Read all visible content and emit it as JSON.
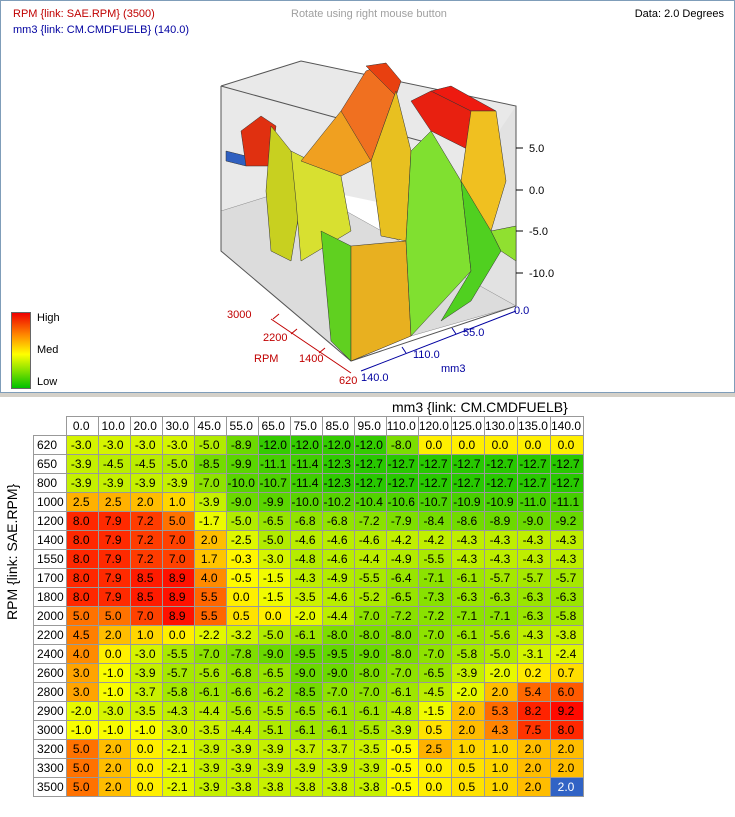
{
  "header": {
    "rpm_line": "RPM {link: SAE.RPM} (3500)",
    "mm3_line": "mm3 {link: CM.CMDFUELB} (140.0)",
    "rotate_hint": "Rotate using right mouse button",
    "data_readout": "Data: 2.0 Degrees"
  },
  "legend": {
    "high": "High",
    "med": "Med",
    "low": "Low"
  },
  "axes3d": {
    "z_ticks": [
      "5.0",
      "0.0",
      "-5.0",
      "-10.0"
    ],
    "rpm_label": "RPM",
    "rpm_ticks": [
      "3000",
      "2200",
      "1400",
      "620"
    ],
    "mm3_label": "mm3",
    "mm3_ticks": [
      "0.0",
      "55.0",
      "110.0",
      "140.0"
    ]
  },
  "grid": {
    "col_axis_title": "mm3 {link: CM.CMDFUELB}",
    "row_axis_title": "RPM {link: SAE.RPM}",
    "columns": [
      "0.0",
      "10.0",
      "20.0",
      "30.0",
      "45.0",
      "55.0",
      "65.0",
      "75.0",
      "85.0",
      "95.0",
      "110.0",
      "120.0",
      "125.0",
      "130.0",
      "135.0",
      "140.0"
    ],
    "rows": [
      "620",
      "650",
      "800",
      "1000",
      "1200",
      "1400",
      "1550",
      "1700",
      "1800",
      "2000",
      "2200",
      "2400",
      "2600",
      "2800",
      "2900",
      "3000",
      "3200",
      "3300",
      "3500"
    ],
    "values": [
      [
        "-3.0",
        "-3.0",
        "-3.0",
        "-3.0",
        "-5.0",
        "-8.9",
        "-12.0",
        "-12.0",
        "-12.0",
        "-12.0",
        "-8.0",
        "0.0",
        "0.0",
        "0.0",
        "0.0",
        "0.0"
      ],
      [
        "-3.9",
        "-4.5",
        "-4.5",
        "-5.0",
        "-8.5",
        "-9.9",
        "-11.1",
        "-11.4",
        "-12.3",
        "-12.7",
        "-12.7",
        "-12.7",
        "-12.7",
        "-12.7",
        "-12.7",
        "-12.7"
      ],
      [
        "-3.9",
        "-3.9",
        "-3.9",
        "-3.9",
        "-7.0",
        "-10.0",
        "-10.7",
        "-11.4",
        "-12.3",
        "-12.7",
        "-12.7",
        "-12.7",
        "-12.7",
        "-12.7",
        "-12.7",
        "-12.7"
      ],
      [
        "2.5",
        "2.5",
        "2.0",
        "1.0",
        "-3.9",
        "-9.0",
        "-9.9",
        "-10.0",
        "-10.2",
        "-10.4",
        "-10.6",
        "-10.7",
        "-10.9",
        "-10.9",
        "-11.0",
        "-11.1"
      ],
      [
        "8.0",
        "7.9",
        "7.2",
        "5.0",
        "-1.7",
        "-5.0",
        "-6.5",
        "-6.8",
        "-6.8",
        "-7.2",
        "-7.9",
        "-8.4",
        "-8.6",
        "-8.9",
        "-9.0",
        "-9.2"
      ],
      [
        "8.0",
        "7.9",
        "7.2",
        "7.0",
        "2.0",
        "-2.5",
        "-5.0",
        "-4.6",
        "-4.6",
        "-4.6",
        "-4.2",
        "-4.2",
        "-4.3",
        "-4.3",
        "-4.3",
        "-4.3"
      ],
      [
        "8.0",
        "7.9",
        "7.2",
        "7.0",
        "1.7",
        "-0.3",
        "-3.0",
        "-4.8",
        "-4.6",
        "-4.4",
        "-4.9",
        "-5.5",
        "-4.3",
        "-4.3",
        "-4.3",
        "-4.3"
      ],
      [
        "8.0",
        "7.9",
        "8.5",
        "8.9",
        "4.0",
        "-0.5",
        "-1.5",
        "-4.3",
        "-4.9",
        "-5.5",
        "-6.4",
        "-7.1",
        "-6.1",
        "-5.7",
        "-5.7",
        "-5.7"
      ],
      [
        "8.0",
        "7.9",
        "8.5",
        "8.9",
        "5.5",
        "0.0",
        "-1.5",
        "-3.5",
        "-4.6",
        "-5.2",
        "-6.5",
        "-7.3",
        "-6.3",
        "-6.3",
        "-6.3",
        "-6.3"
      ],
      [
        "5.0",
        "5.0",
        "7.0",
        "8.9",
        "5.5",
        "0.5",
        "0.0",
        "-2.0",
        "-4.4",
        "-7.0",
        "-7.2",
        "-7.2",
        "-7.1",
        "-7.1",
        "-6.3",
        "-5.8"
      ],
      [
        "4.5",
        "2.0",
        "1.0",
        "0.0",
        "-2.2",
        "-3.2",
        "-5.0",
        "-6.1",
        "-8.0",
        "-8.0",
        "-8.0",
        "-7.0",
        "-6.1",
        "-5.6",
        "-4.3",
        "-3.8"
      ],
      [
        "4.0",
        "0.0",
        "-3.0",
        "-5.5",
        "-7.0",
        "-7.8",
        "-9.0",
        "-9.5",
        "-9.5",
        "-9.0",
        "-8.0",
        "-7.0",
        "-5.8",
        "-5.0",
        "-3.1",
        "-2.4"
      ],
      [
        "3.0",
        "-1.0",
        "-3.9",
        "-5.7",
        "-5.6",
        "-6.8",
        "-6.5",
        "-9.0",
        "-9.0",
        "-8.0",
        "-7.0",
        "-6.5",
        "-3.9",
        "-2.0",
        "0.2",
        "0.7"
      ],
      [
        "3.0",
        "-1.0",
        "-3.7",
        "-5.8",
        "-6.1",
        "-6.6",
        "-6.2",
        "-8.5",
        "-7.0",
        "-7.0",
        "-6.1",
        "-4.5",
        "-2.0",
        "2.0",
        "5.4",
        "6.0"
      ],
      [
        "-2.0",
        "-3.0",
        "-3.5",
        "-4.3",
        "-4.4",
        "-5.6",
        "-5.5",
        "-6.5",
        "-6.1",
        "-6.1",
        "-4.8",
        "-1.5",
        "2.0",
        "5.3",
        "8.2",
        "9.2"
      ],
      [
        "-1.0",
        "-1.0",
        "-1.0",
        "-3.0",
        "-3.5",
        "-4.4",
        "-5.1",
        "-6.1",
        "-6.1",
        "-5.5",
        "-3.9",
        "0.5",
        "2.0",
        "4.3",
        "7.5",
        "8.0"
      ],
      [
        "5.0",
        "2.0",
        "0.0",
        "-2.1",
        "-3.9",
        "-3.9",
        "-3.9",
        "-3.7",
        "-3.7",
        "-3.5",
        "-0.5",
        "2.5",
        "1.0",
        "1.0",
        "2.0",
        "2.0"
      ],
      [
        "5.0",
        "2.0",
        "0.0",
        "-2.1",
        "-3.9",
        "-3.9",
        "-3.9",
        "-3.9",
        "-3.9",
        "-3.9",
        "-0.5",
        "0.0",
        "0.5",
        "1.0",
        "2.0",
        "2.0"
      ],
      [
        "5.0",
        "2.0",
        "0.0",
        "-2.1",
        "-3.9",
        "-3.8",
        "-3.8",
        "-3.8",
        "-3.8",
        "-3.8",
        "-0.5",
        "0.0",
        "0.5",
        "1.0",
        "2.0",
        "2.0"
      ]
    ],
    "selected_cell": {
      "row": "3500",
      "column": "140.0"
    },
    "selected_color": "#3163c5"
  }
}
